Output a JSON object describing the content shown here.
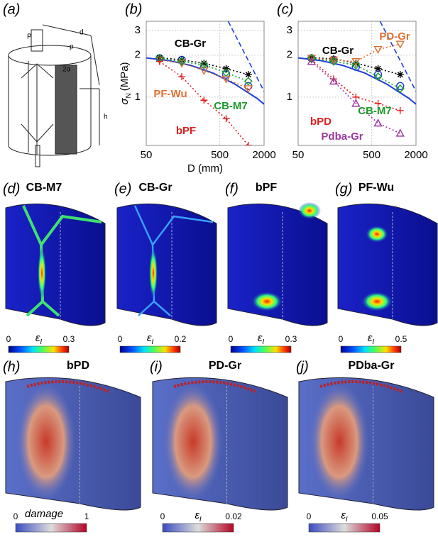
{
  "panel_a": {
    "label": "(a)",
    "annotations": [
      "P",
      "d",
      "p",
      "2α",
      "h"
    ]
  },
  "chart_data": [
    {
      "type": "line",
      "label": "(b)",
      "xscale": "log",
      "yscale": "log",
      "grid": true,
      "xlim": [
        50,
        2000
      ],
      "ylim": [
        0.45,
        3.5
      ],
      "xticks": [
        50,
        500,
        2000
      ],
      "yticks": [
        1,
        2,
        3
      ],
      "xlabel": "D (mm)",
      "ylabel_symbol": "σ",
      "ylabel_subscript": "N",
      "ylabel_unit": "(MPa)",
      "series": [
        {
          "color": "#1f3fd8",
          "dash": "solid",
          "marker": "none",
          "x": [
            50,
            100,
            200,
            400,
            800,
            1600,
            2000
          ],
          "values": [
            1.91,
            1.83,
            1.69,
            1.49,
            1.24,
            0.98,
            0.89
          ]
        },
        {
          "color": "#1f3fd8",
          "dash": "dashed",
          "marker": "none",
          "x": [
            650,
            2000
          ],
          "values": [
            3.5,
            1.1
          ]
        },
        {
          "color": "#1f3fd8",
          "dash": "none",
          "marker": "circle",
          "x": [
            76,
            152,
            305,
            610,
            1220
          ],
          "values": [
            1.9,
            1.85,
            1.65,
            1.45,
            1.2
          ]
        },
        {
          "name": "CB-Gr",
          "color": "#000000",
          "dash": "dotted",
          "marker": "star",
          "x": [
            76,
            152,
            305,
            610,
            1220
          ],
          "values": [
            1.92,
            1.85,
            1.75,
            1.6,
            1.45
          ]
        },
        {
          "name": "PF-Wu",
          "color": "#e07030",
          "dash": "dotted",
          "marker": "triangle-down",
          "x": [
            76,
            152,
            305,
            610,
            1220
          ],
          "values": [
            1.85,
            1.75,
            1.55,
            1.35,
            1.15
          ]
        },
        {
          "name": "CB-M7",
          "color": "#1a9a2a",
          "dash": "dotted",
          "marker": "diamond",
          "x": [
            76,
            152,
            305,
            610,
            1220
          ],
          "values": [
            1.9,
            1.8,
            1.7,
            1.5,
            1.3
          ]
        },
        {
          "name": "bPF",
          "color": "#e02020",
          "dash": "dotted",
          "marker": "plus",
          "x": [
            76,
            152,
            305,
            610,
            1220
          ],
          "values": [
            1.8,
            1.4,
            0.95,
            0.7,
            0.45
          ]
        }
      ]
    },
    {
      "type": "line",
      "label": "(c)",
      "xscale": "log",
      "yscale": "log",
      "grid": true,
      "xlim": [
        50,
        2000
      ],
      "ylim": [
        0.45,
        3.5
      ],
      "xticks": [
        50,
        500,
        2000
      ],
      "yticks": [
        1,
        2,
        3
      ],
      "series": [
        {
          "color": "#1f3fd8",
          "dash": "solid",
          "marker": "none",
          "x": [
            50,
            100,
            200,
            400,
            800,
            1600,
            2000
          ],
          "values": [
            1.91,
            1.83,
            1.69,
            1.49,
            1.24,
            0.98,
            0.89
          ]
        },
        {
          "color": "#1f3fd8",
          "dash": "dashed",
          "marker": "none",
          "x": [
            650,
            2000
          ],
          "values": [
            3.5,
            1.1
          ]
        },
        {
          "color": "#1f3fd8",
          "dash": "none",
          "marker": "circle",
          "x": [
            76,
            152,
            305,
            610,
            1220
          ],
          "values": [
            1.9,
            1.85,
            1.65,
            1.45,
            1.2
          ]
        },
        {
          "name": "CB-Gr",
          "color": "#000000",
          "dash": "dotted",
          "marker": "star",
          "x": [
            76,
            152,
            305,
            610,
            1220
          ],
          "values": [
            1.92,
            1.88,
            1.75,
            1.6,
            1.45
          ]
        },
        {
          "name": "PD-Gr",
          "color": "#e07030",
          "dash": "dotted",
          "marker": "triangle-down",
          "x": [
            76,
            152,
            305,
            610,
            1220
          ],
          "values": [
            1.9,
            1.85,
            1.8,
            2.2,
            2.4
          ]
        },
        {
          "name": "bPD",
          "color": "#e02020",
          "dash": "dotted",
          "marker": "plus",
          "x": [
            76,
            152,
            305,
            610,
            1220
          ],
          "values": [
            1.85,
            1.35,
            1.0,
            0.9,
            0.8
          ]
        },
        {
          "name": "CB-M7",
          "color": "#1a9a2a",
          "dash": "dotted",
          "marker": "diamond",
          "x": [
            76,
            152,
            305,
            610,
            1220
          ],
          "values": [
            1.9,
            1.8,
            1.7,
            1.4,
            1.15
          ]
        },
        {
          "name": "Pdba-Gr",
          "color": "#9a3aa0",
          "dash": "dotted",
          "marker": "triangle-up",
          "x": [
            76,
            152,
            305,
            610,
            1220
          ],
          "values": [
            1.8,
            1.3,
            0.9,
            0.65,
            0.55
          ]
        }
      ]
    }
  ],
  "images": [
    {
      "label": "(d)",
      "title": "CB-M7",
      "colorbar": {
        "symbol": "ε",
        "subscript": "I",
        "ticks": [
          0,
          0.3
        ]
      }
    },
    {
      "label": "(e)",
      "title": "CB-Gr",
      "colorbar": {
        "symbol": "ε",
        "subscript": "I",
        "ticks": [
          0,
          0.2
        ]
      }
    },
    {
      "label": "(f)",
      "title": "bPF",
      "colorbar": {
        "symbol": "ε",
        "subscript": "I",
        "ticks": [
          0,
          0.3
        ]
      }
    },
    {
      "label": "(g)",
      "title": "PF-Wu",
      "colorbar": {
        "symbol": "ε",
        "subscript": "I",
        "ticks": [
          0,
          0.5
        ]
      }
    },
    {
      "label": "(h)",
      "title": "bPD",
      "colorbar": {
        "text": "damage",
        "ticks": [
          0,
          1
        ]
      }
    },
    {
      "label": "(i)",
      "title": "PD-Gr",
      "colorbar": {
        "symbol": "ε",
        "subscript": "I",
        "ticks": [
          0,
          0.02
        ]
      }
    },
    {
      "label": "(j)",
      "title": "PDba-Gr",
      "colorbar": {
        "symbol": "ε",
        "subscript": "I",
        "ticks": [
          0,
          0.05
        ]
      }
    }
  ]
}
